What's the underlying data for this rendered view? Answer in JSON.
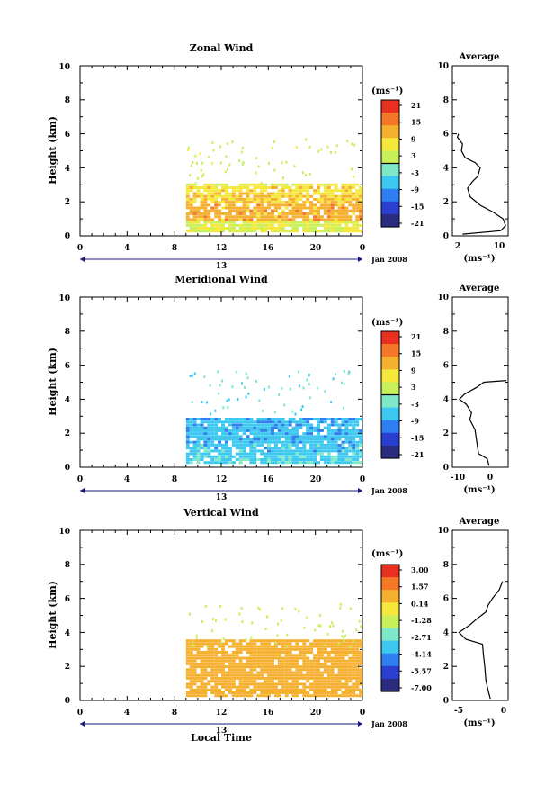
{
  "panels": [
    {
      "title": "Zonal Wind",
      "ylabel": "Height (km)",
      "yticks": [
        "0",
        "2",
        "4",
        "6",
        "8",
        "10"
      ],
      "xticks": [
        "0",
        "4",
        "8",
        "12",
        "16",
        "20",
        "0"
      ],
      "date_label": "13",
      "date_suffix": "Jan 2008",
      "unit_label": "(ms⁻¹)",
      "colorbar_ticks": [
        "21",
        "15",
        "9",
        "3",
        "-3",
        "-9",
        "-15",
        "-21"
      ],
      "avg_title": "Average",
      "avg_xticks": [
        "2",
        "10"
      ],
      "avg_xlabel": "(ms⁻¹)"
    },
    {
      "title": "Meridional Wind",
      "ylabel": "Height (km)",
      "yticks": [
        "0",
        "2",
        "4",
        "6",
        "8",
        "10"
      ],
      "xticks": [
        "0",
        "4",
        "8",
        "12",
        "16",
        "20",
        "0"
      ],
      "date_label": "13",
      "date_suffix": "Jan 2008",
      "unit_label": "(ms⁻¹)",
      "colorbar_ticks": [
        "21",
        "15",
        "9",
        "3",
        "-3",
        "-9",
        "-15",
        "-21"
      ],
      "avg_title": "Average",
      "avg_xticks": [
        "-10",
        "0"
      ],
      "avg_xlabel": "(ms⁻¹)"
    },
    {
      "title": "Vertical Wind",
      "ylabel": "Height (km)",
      "yticks": [
        "0",
        "2",
        "4",
        "6",
        "8",
        "10"
      ],
      "xticks": [
        "0",
        "4",
        "8",
        "12",
        "16",
        "20",
        "0"
      ],
      "date_label": "13",
      "date_suffix": "Jan 2008",
      "unit_label": "(ms⁻¹)",
      "colorbar_ticks": [
        "3.00",
        "1.57",
        "0.14",
        "-1.28",
        "-2.71",
        "-4.14",
        "-5.57",
        "-7.00"
      ],
      "avg_title": "Average",
      "avg_xticks": [
        "-5",
        "0"
      ],
      "avg_xlabel": "(ms⁻¹)",
      "xlabel": "Local Time"
    }
  ],
  "colors": {
    "scale": [
      "#2b2b7f",
      "#2a3fd0",
      "#2f7ff0",
      "#3cc8f0",
      "#7ee8c8",
      "#c8f05a",
      "#f5e83c",
      "#f5b030",
      "#f57828",
      "#e83020"
    ],
    "zero_line": "#000000"
  },
  "chart_data": [
    {
      "type": "heatmap",
      "title": "Zonal Wind",
      "ylabel": "Height (km)",
      "x_range_hours": [
        0,
        24
      ],
      "ylim": [
        0,
        10
      ],
      "colorbar_range": [
        -24,
        24
      ],
      "dominant_values_by_height": [
        {
          "height": 0.5,
          "value": 5
        },
        {
          "height": 1.0,
          "value": 12
        },
        {
          "height": 1.5,
          "value": 12
        },
        {
          "height": 2.0,
          "value": 10
        },
        {
          "height": 2.5,
          "value": 8
        },
        {
          "height": 3.0,
          "value": 6
        },
        {
          "height": 4.0,
          "value": 4
        },
        {
          "height": 5.0,
          "value": 3
        }
      ],
      "data_start_hour": 9,
      "average_profile": {
        "xlim": [
          1,
          12
        ],
        "points": [
          {
            "v": 3.0,
            "h": 0.1
          },
          {
            "v": 10.5,
            "h": 0.3
          },
          {
            "v": 11.5,
            "h": 0.6
          },
          {
            "v": 11.0,
            "h": 1.0
          },
          {
            "v": 9.0,
            "h": 1.4
          },
          {
            "v": 6.5,
            "h": 1.8
          },
          {
            "v": 4.5,
            "h": 2.3
          },
          {
            "v": 4.0,
            "h": 2.8
          },
          {
            "v": 5.0,
            "h": 3.2
          },
          {
            "v": 6.0,
            "h": 3.5
          },
          {
            "v": 6.5,
            "h": 4.0
          },
          {
            "v": 5.5,
            "h": 4.3
          },
          {
            "v": 3.5,
            "h": 4.6
          },
          {
            "v": 2.8,
            "h": 5.0
          },
          {
            "v": 3.0,
            "h": 5.4
          },
          {
            "v": 2.0,
            "h": 5.8
          },
          {
            "v": 2.2,
            "h": 6.0
          }
        ]
      }
    },
    {
      "type": "heatmap",
      "title": "Meridional Wind",
      "ylabel": "Height (km)",
      "x_range_hours": [
        0,
        24
      ],
      "ylim": [
        0,
        10
      ],
      "colorbar_range": [
        -24,
        24
      ],
      "dominant_values_by_height": [
        {
          "height": 0.5,
          "value": -6
        },
        {
          "height": 1.0,
          "value": -7
        },
        {
          "height": 1.5,
          "value": -8
        },
        {
          "height": 2.0,
          "value": -8
        },
        {
          "height": 3.0,
          "value": -6
        },
        {
          "height": 4.0,
          "value": -10
        },
        {
          "height": 5.0,
          "value": -4
        }
      ],
      "data_start_hour": 9,
      "average_profile": {
        "xlim": [
          -12,
          4
        ],
        "points": [
          {
            "v": -1.5,
            "h": 0.1
          },
          {
            "v": -2.0,
            "h": 0.5
          },
          {
            "v": -4.5,
            "h": 0.8
          },
          {
            "v": -5.0,
            "h": 1.5
          },
          {
            "v": -5.5,
            "h": 2.2
          },
          {
            "v": -7.0,
            "h": 2.8
          },
          {
            "v": -6.5,
            "h": 3.2
          },
          {
            "v": -8.0,
            "h": 3.7
          },
          {
            "v": -10.0,
            "h": 4.0
          },
          {
            "v": -8.5,
            "h": 4.3
          },
          {
            "v": -5.0,
            "h": 4.7
          },
          {
            "v": -3.0,
            "h": 5.0
          },
          {
            "v": 3.5,
            "h": 5.1
          }
        ]
      }
    },
    {
      "type": "heatmap",
      "title": "Vertical Wind",
      "ylabel": "Height (km)",
      "xlabel": "Local Time",
      "x_range_hours": [
        0,
        24
      ],
      "ylim": [
        0,
        10
      ],
      "colorbar_range": [
        -7.0,
        3.0
      ],
      "dominant_values_by_height": [
        {
          "height": 0.5,
          "value": 0.3
        },
        {
          "height": 1.5,
          "value": 0.3
        },
        {
          "height": 2.5,
          "value": 0.3
        },
        {
          "height": 3.0,
          "value": 0.4
        },
        {
          "height": 4.5,
          "value": -1.0
        },
        {
          "height": 5.5,
          "value": -1.5
        }
      ],
      "data_start_hour": 9,
      "average_profile": {
        "xlim": [
          -4,
          1
        ],
        "points": [
          {
            "v": -0.6,
            "h": 0.1
          },
          {
            "v": -0.8,
            "h": 0.6
          },
          {
            "v": -1.0,
            "h": 1.2
          },
          {
            "v": -1.1,
            "h": 2.0
          },
          {
            "v": -1.2,
            "h": 2.6
          },
          {
            "v": -1.3,
            "h": 3.3
          },
          {
            "v": -2.8,
            "h": 3.6
          },
          {
            "v": -3.4,
            "h": 4.0
          },
          {
            "v": -2.5,
            "h": 4.4
          },
          {
            "v": -1.8,
            "h": 4.8
          },
          {
            "v": -1.0,
            "h": 5.2
          },
          {
            "v": -0.8,
            "h": 5.6
          },
          {
            "v": -0.4,
            "h": 6.0
          },
          {
            "v": 0.2,
            "h": 6.5
          },
          {
            "v": 0.5,
            "h": 7.0
          }
        ]
      }
    }
  ]
}
